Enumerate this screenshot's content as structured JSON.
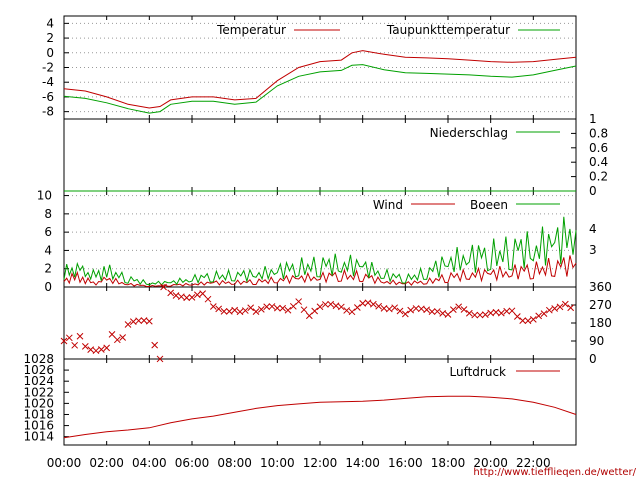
{
  "chart_data": [
    {
      "type": "line",
      "x_start": "00:00",
      "x_end": "24:00",
      "ylim": [
        -9,
        5
      ],
      "yticks": [
        "4",
        "2",
        "0",
        "-2",
        "-4",
        "-6",
        "-8"
      ],
      "series": [
        {
          "name": "Temperatur",
          "color": "#c00000",
          "points": [
            [
              "00:00",
              -4.9
            ],
            [
              "01:00",
              -5.2
            ],
            [
              "02:00",
              -6.0
            ],
            [
              "03:00",
              -7.0
            ],
            [
              "04:00",
              -7.5
            ],
            [
              "04:30",
              -7.3
            ],
            [
              "05:00",
              -6.4
            ],
            [
              "06:00",
              -6.0
            ],
            [
              "07:00",
              -6.0
            ],
            [
              "08:00",
              -6.4
            ],
            [
              "09:00",
              -6.2
            ],
            [
              "10:00",
              -3.8
            ],
            [
              "11:00",
              -2.0
            ],
            [
              "12:00",
              -1.2
            ],
            [
              "13:00",
              -1.0
            ],
            [
              "13:30",
              0.0
            ],
            [
              "14:00",
              0.3
            ],
            [
              "15:00",
              -0.2
            ],
            [
              "16:00",
              -0.6
            ],
            [
              "17:00",
              -0.7
            ],
            [
              "18:00",
              -0.8
            ],
            [
              "19:00",
              -1.0
            ],
            [
              "20:00",
              -1.2
            ],
            [
              "21:00",
              -1.3
            ],
            [
              "22:00",
              -1.2
            ],
            [
              "23:00",
              -0.9
            ],
            [
              "24:00",
              -0.6
            ]
          ]
        },
        {
          "name": "Taupunkttemperatur",
          "color": "#00a000",
          "points": [
            [
              "00:00",
              -5.9
            ],
            [
              "01:00",
              -6.2
            ],
            [
              "02:00",
              -6.8
            ],
            [
              "03:00",
              -7.6
            ],
            [
              "04:00",
              -8.2
            ],
            [
              "04:30",
              -8.0
            ],
            [
              "05:00",
              -7.0
            ],
            [
              "06:00",
              -6.6
            ],
            [
              "07:00",
              -6.6
            ],
            [
              "08:00",
              -7.0
            ],
            [
              "09:00",
              -6.7
            ],
            [
              "10:00",
              -4.5
            ],
            [
              "11:00",
              -3.2
            ],
            [
              "12:00",
              -2.6
            ],
            [
              "13:00",
              -2.4
            ],
            [
              "13:30",
              -1.7
            ],
            [
              "14:00",
              -1.6
            ],
            [
              "15:00",
              -2.3
            ],
            [
              "16:00",
              -2.7
            ],
            [
              "17:00",
              -2.8
            ],
            [
              "18:00",
              -2.9
            ],
            [
              "19:00",
              -3.0
            ],
            [
              "20:00",
              -3.2
            ],
            [
              "21:00",
              -3.3
            ],
            [
              "22:00",
              -3.0
            ],
            [
              "23:00",
              -2.4
            ],
            [
              "24:00",
              -1.8
            ]
          ]
        }
      ],
      "legend_position": "top-right",
      "grid": true
    },
    {
      "type": "line",
      "x_start": "00:00",
      "x_end": "24:00",
      "ylim": [
        0,
        1
      ],
      "yticks_right": [
        "1",
        "0.8",
        "0.6",
        "0.4",
        "0.2",
        "0"
      ],
      "series": [
        {
          "name": "Niederschlag",
          "color": "#00a000",
          "points": [
            [
              "00:00",
              0
            ],
            [
              "24:00",
              0
            ]
          ]
        }
      ],
      "legend_position": "top-right"
    },
    {
      "type": "line",
      "x_start": "00:00",
      "x_end": "24:00",
      "ylim": [
        0,
        10.5
      ],
      "yticks": [
        "10",
        "8",
        "6",
        "4",
        "2",
        "0"
      ],
      "right_labels": [
        "4",
        "3"
      ],
      "series": [
        {
          "name": "Wind",
          "color": "#c00000",
          "points": [
            [
              "00:00",
              0.6
            ],
            [
              "00:30",
              1.2
            ],
            [
              "01:00",
              0.8
            ],
            [
              "01:30",
              0.4
            ],
            [
              "02:00",
              0.9
            ],
            [
              "03:00",
              0.3
            ],
            [
              "04:00",
              0.1
            ],
            [
              "05:00",
              0.2
            ],
            [
              "06:00",
              0.3
            ],
            [
              "07:00",
              0.5
            ],
            [
              "08:00",
              0.5
            ],
            [
              "09:00",
              0.6
            ],
            [
              "10:00",
              0.8
            ],
            [
              "11:00",
              1.0
            ],
            [
              "12:00",
              1.1
            ],
            [
              "13:00",
              1.3
            ],
            [
              "14:00",
              1.2
            ],
            [
              "15:00",
              0.6
            ],
            [
              "16:00",
              0.4
            ],
            [
              "17:00",
              0.6
            ],
            [
              "18:00",
              1.1
            ],
            [
              "19:00",
              1.4
            ],
            [
              "20:00",
              1.5
            ],
            [
              "21:00",
              1.7
            ],
            [
              "22:00",
              1.9
            ],
            [
              "23:00",
              2.3
            ],
            [
              "24:00",
              2.6
            ]
          ]
        },
        {
          "name": "Boeen",
          "color": "#00a000",
          "points": [
            [
              "00:00",
              1.6
            ],
            [
              "00:30",
              2.2
            ],
            [
              "01:00",
              1.6
            ],
            [
              "01:30",
              1.2
            ],
            [
              "02:00",
              1.8
            ],
            [
              "03:00",
              0.9
            ],
            [
              "04:00",
              0.4
            ],
            [
              "05:00",
              0.5
            ],
            [
              "06:00",
              0.9
            ],
            [
              "07:00",
              1.2
            ],
            [
              "08:00",
              1.3
            ],
            [
              "09:00",
              1.4
            ],
            [
              "10:00",
              1.8
            ],
            [
              "11:00",
              2.2
            ],
            [
              "12:00",
              2.4
            ],
            [
              "13:00",
              2.6
            ],
            [
              "14:00",
              2.3
            ],
            [
              "15:00",
              1.4
            ],
            [
              "16:00",
              0.9
            ],
            [
              "17:00",
              1.6
            ],
            [
              "18:00",
              2.8
            ],
            [
              "19:00",
              3.3
            ],
            [
              "20:00",
              3.6
            ],
            [
              "21:00",
              4.0
            ],
            [
              "22:00",
              4.4
            ],
            [
              "23:00",
              4.9
            ],
            [
              "24:00",
              6.2
            ]
          ]
        }
      ],
      "legend_position": "top-right",
      "grid": true
    },
    {
      "type": "scatter",
      "x_start": "00:00",
      "x_end": "24:00",
      "ylim": [
        0,
        360
      ],
      "yticks_right": [
        "360",
        "270",
        "180",
        "90",
        "0"
      ],
      "series": [
        {
          "name": "",
          "color": "#c00000",
          "points": [
            [
              "00:00",
              90
            ],
            [
              "00:15",
              120
            ],
            [
              "00:30",
              70
            ],
            [
              "00:45",
              100
            ],
            [
              "01:00",
              60
            ],
            [
              "01:30",
              55
            ],
            [
              "02:00",
              60
            ],
            [
              "02:15",
              110
            ],
            [
              "02:30",
              90
            ],
            [
              "02:45",
              120
            ],
            [
              "03:00",
              180
            ],
            [
              "03:30",
              180
            ],
            [
              "04:00",
              180
            ],
            [
              "04:15",
              80
            ],
            [
              "04:30",
              10
            ],
            [
              "04:40",
              360
            ],
            [
              "05:00",
              320
            ],
            [
              "05:30",
              320
            ],
            [
              "06:00",
              320
            ],
            [
              "06:30",
              320
            ],
            [
              "07:00",
              250
            ],
            [
              "08:00",
              250
            ],
            [
              "09:00",
              250
            ],
            [
              "10:00",
              250
            ],
            [
              "10:30",
              230
            ],
            [
              "11:00",
              290
            ],
            [
              "11:30",
              230
            ],
            [
              "12:00",
              260
            ],
            [
              "12:30",
              260
            ],
            [
              "13:00",
              260
            ],
            [
              "13:30",
              250
            ],
            [
              "14:00",
              280
            ],
            [
              "14:30",
              260
            ],
            [
              "15:00",
              250
            ],
            [
              "15:30",
              270
            ],
            [
              "16:00",
              230
            ],
            [
              "16:30",
              240
            ],
            [
              "17:00",
              240
            ],
            [
              "17:30",
              250
            ],
            [
              "18:00",
              230
            ],
            [
              "18:30",
              250
            ],
            [
              "19:00",
              220
            ],
            [
              "19:30",
              230
            ],
            [
              "20:00",
              240
            ],
            [
              "20:30",
              220
            ],
            [
              "21:00",
              230
            ],
            [
              "21:30",
              200
            ],
            [
              "22:00",
              210
            ],
            [
              "22:30",
              220
            ],
            [
              "23:00",
              240
            ],
            [
              "23:30",
              280
            ],
            [
              "24:00",
              260
            ]
          ]
        }
      ]
    },
    {
      "type": "line",
      "x_start": "00:00",
      "x_end": "24:00",
      "ylim": [
        1012.5,
        1028
      ],
      "yticks": [
        "1028",
        "1026",
        "1024",
        "1022",
        "1020",
        "1018",
        "1016",
        "1014"
      ],
      "series": [
        {
          "name": "Luftdruck",
          "color": "#c00000",
          "points": [
            [
              "00:00",
              1013.8
            ],
            [
              "01:00",
              1014.4
            ],
            [
              "02:00",
              1014.9
            ],
            [
              "03:00",
              1015.2
            ],
            [
              "04:00",
              1015.6
            ],
            [
              "05:00",
              1016.5
            ],
            [
              "06:00",
              1017.2
            ],
            [
              "07:00",
              1017.7
            ],
            [
              "08:00",
              1018.4
            ],
            [
              "09:00",
              1019.1
            ],
            [
              "10:00",
              1019.6
            ],
            [
              "11:00",
              1019.9
            ],
            [
              "12:00",
              1020.2
            ],
            [
              "13:00",
              1020.3
            ],
            [
              "14:00",
              1020.4
            ],
            [
              "15:00",
              1020.6
            ],
            [
              "16:00",
              1020.9
            ],
            [
              "17:00",
              1021.2
            ],
            [
              "18:00",
              1021.3
            ],
            [
              "19:00",
              1021.3
            ],
            [
              "20:00",
              1021.1
            ],
            [
              "21:00",
              1020.8
            ],
            [
              "22:00",
              1020.2
            ],
            [
              "23:00",
              1019.3
            ],
            [
              "24:00",
              1018.0
            ]
          ]
        }
      ],
      "legend_position": "top-right",
      "grid": true
    }
  ],
  "x_tick_labels": [
    "00:00",
    "02:00",
    "04:00",
    "06:00",
    "08:00",
    "10:00",
    "12:00",
    "14:00",
    "16:00",
    "18:00",
    "20:00",
    "22:00"
  ],
  "credit": "http://www.tiefflieqen.de/wetter/"
}
